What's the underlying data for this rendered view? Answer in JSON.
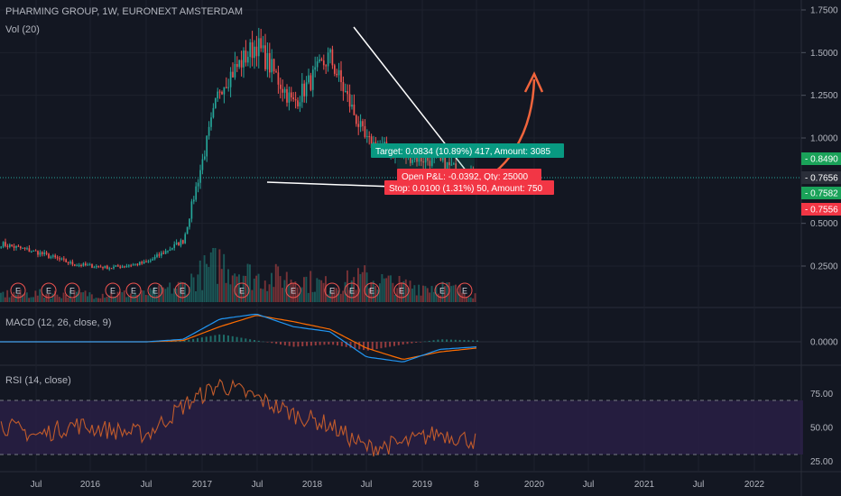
{
  "header": {
    "symbol_line": "PHARMING GROUP, 1W, EURONEXT AMSTERDAM",
    "volume_line": "Vol (20)",
    "macd_line": "MACD (12, 26, close, 9)",
    "rsi_line": "RSI (14, close)"
  },
  "price_scale": {
    "ticks": [
      "1.7500",
      "1.5000",
      "1.2500",
      "1.0000",
      "0.5000",
      "0.2500"
    ],
    "tags": [
      {
        "label": "0.8490",
        "color": "#1aa259"
      },
      {
        "label": "0.7656",
        "color": "#2a2e39"
      },
      {
        "label": "0.7582",
        "color": "#1aa259"
      },
      {
        "label": "0.7556",
        "color": "#f23645"
      }
    ]
  },
  "macd_scale": {
    "ticks": [
      "0.0000"
    ]
  },
  "rsi_scale": {
    "ticks": [
      "75.00",
      "50.00",
      "25.00"
    ]
  },
  "time_axis": {
    "labels": [
      "Jul",
      "2016",
      "Jul",
      "2017",
      "Jul",
      "2018",
      "Jul",
      "2019",
      "8",
      "2020",
      "Jul",
      "2021",
      "Jul",
      "2022"
    ]
  },
  "position_tool": {
    "target_label": "Target: 0.0834 (10.89%) 417, Amount: 3085",
    "center_label": "Open P&L: -0.0392, Qty: 25000",
    "stop_label": "Stop: 0.0100 (1.31%) 50, Amount: 750",
    "target_color": "#089981",
    "stop_color": "#f23645"
  },
  "earnings_marker": "E",
  "colors": {
    "up": "#26a69a",
    "down": "#ef5350",
    "macd": "#2196f3",
    "signal": "#ff6d00",
    "rsi": "#c15b2b",
    "arrow": "#f0643c",
    "rsi_band": "#2a1f47"
  },
  "chart_data": [
    {
      "type": "candlestick",
      "title": "PHARMING GROUP, 1W, EURONEXT AMSTERDAM",
      "x": [
        "2015-05",
        "2015-07",
        "2016-01",
        "2016-07",
        "2017-01",
        "2017-07",
        "2017-10",
        "2018-01",
        "2018-04",
        "2018-07",
        "2018-10",
        "2019-01",
        "2019-04",
        "2019-07"
      ],
      "close": [
        0.38,
        0.33,
        0.26,
        0.24,
        0.27,
        0.4,
        1.3,
        1.55,
        1.2,
        1.48,
        0.98,
        0.9,
        0.86,
        0.7656
      ],
      "ylim": [
        0,
        1.75
      ],
      "last_price": 0.7656
    },
    {
      "type": "bar",
      "title": "Vol (20)",
      "values": [
        1,
        1,
        1,
        1,
        1,
        2,
        5,
        3,
        3,
        2,
        3,
        2,
        2,
        1
      ]
    },
    {
      "type": "line",
      "title": "MACD (12, 26, close, 9)",
      "series": [
        {
          "name": "MACD",
          "values": [
            0,
            0,
            0,
            0,
            0,
            0.02,
            0.18,
            0.22,
            0.12,
            0.08,
            -0.12,
            -0.16,
            -0.06,
            -0.04
          ]
        },
        {
          "name": "Signal",
          "values": [
            0,
            0,
            0,
            0,
            0,
            0.01,
            0.12,
            0.21,
            0.16,
            0.1,
            -0.05,
            -0.14,
            -0.08,
            -0.05
          ]
        }
      ]
    },
    {
      "type": "line",
      "title": "RSI (14, close)",
      "values": [
        52,
        44,
        52,
        48,
        45,
        66,
        82,
        72,
        60,
        52,
        35,
        38,
        46,
        40
      ],
      "ylim": [
        20,
        85
      ],
      "bands": [
        30,
        70
      ]
    }
  ]
}
